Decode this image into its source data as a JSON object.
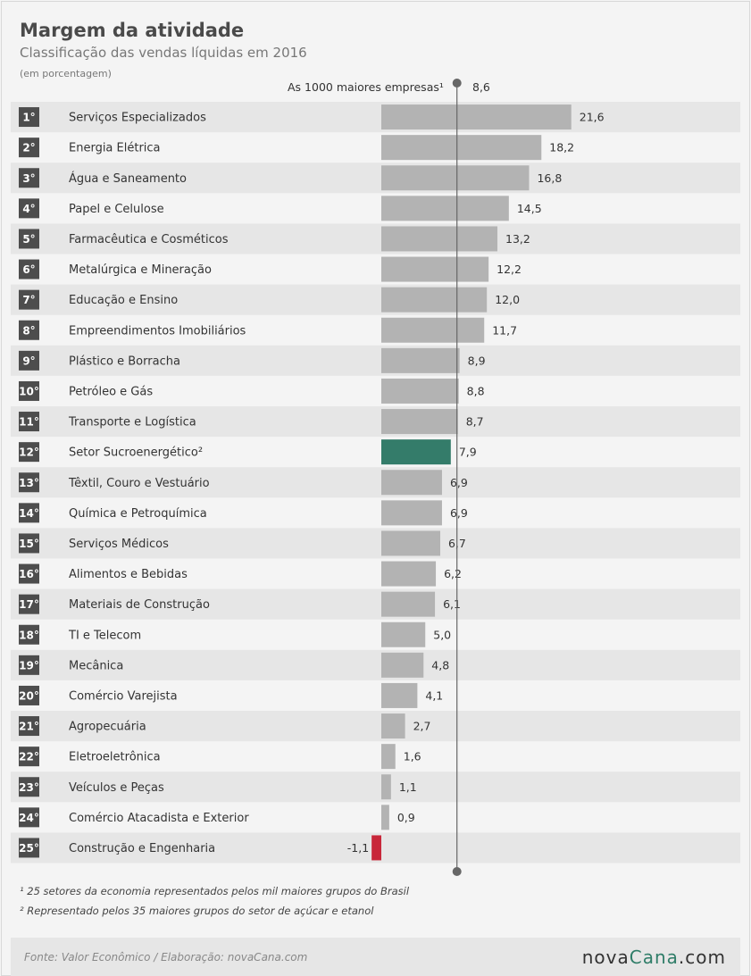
{
  "header": {
    "title": "Margem da atividade",
    "subtitle": "Classificação das vendas líquidas em 2016",
    "unit_note": "(em porcentagem)"
  },
  "reference": {
    "label": "As 1000 maiores empresas¹",
    "value_text": "8,6"
  },
  "chart_data": {
    "type": "bar",
    "orientation": "horizontal",
    "reference_line": {
      "label": "As 1000 maiores empresas¹",
      "value": 8.6
    },
    "colors": {
      "default": "#b3b3b3",
      "highlight": "#347c6a",
      "negative": "#c8273a"
    },
    "highlight_category": "Setor Sucroenergético²",
    "ranks": [
      "1°",
      "2°",
      "3°",
      "4°",
      "5°",
      "6°",
      "7°",
      "8°",
      "9°",
      "10°",
      "11°",
      "12°",
      "13°",
      "14°",
      "15°",
      "16°",
      "17°",
      "18°",
      "19°",
      "20°",
      "21°",
      "22°",
      "23°",
      "24°",
      "25°"
    ],
    "categories": [
      "Serviços Especializados",
      "Energia Elétrica",
      "Água e Saneamento",
      "Papel e Celulose",
      "Farmacêutica e Cosméticos",
      "Metalúrgica e Mineração",
      "Educação e Ensino",
      "Empreendimentos Imobiliários",
      "Plástico e Borracha",
      "Petróleo e Gás",
      "Transporte e Logística",
      "Setor Sucroenergético²",
      "Têxtil, Couro e Vestuário",
      "Química e Petroquímica",
      "Serviços Médicos",
      "Alimentos e Bebidas",
      "Materiais de Construção",
      "TI e Telecom",
      "Mecânica",
      "Comércio Varejista",
      "Agropecuária",
      "Eletroeletrônica",
      "Veículos e Peças",
      "Comércio Atacadista e Exterior",
      "Construção e Engenharia"
    ],
    "values": [
      21.6,
      18.2,
      16.8,
      14.5,
      13.2,
      12.2,
      12.0,
      11.7,
      8.9,
      8.8,
      8.7,
      7.9,
      6.9,
      6.9,
      6.7,
      6.2,
      6.1,
      5.0,
      4.8,
      4.1,
      2.7,
      1.6,
      1.1,
      0.9,
      -1.1
    ],
    "value_labels": [
      "21,6",
      "18,2",
      "16,8",
      "14,5",
      "13,2",
      "12,2",
      "12,0",
      "11,7",
      "8,9",
      "8,8",
      "8,7",
      "7,9",
      "6,9",
      "6,9",
      "6,7",
      "6,2",
      "6,1",
      "5,0",
      "4,8",
      "4,1",
      "2,7",
      "1,6",
      "1,1",
      "0,9",
      "-1,1"
    ]
  },
  "footnotes": {
    "note1": "¹ 25 setores da economia representados pelos mil maiores grupos do Brasil",
    "note2": "² Representado pelos 35 maiores grupos do setor de açúcar e etanol"
  },
  "footer": {
    "source": "Fonte: Valor Econômico / Elaboração: novaCana.com",
    "logo_part1": "nova",
    "logo_part2": "Cana",
    "logo_part3": ".com"
  }
}
